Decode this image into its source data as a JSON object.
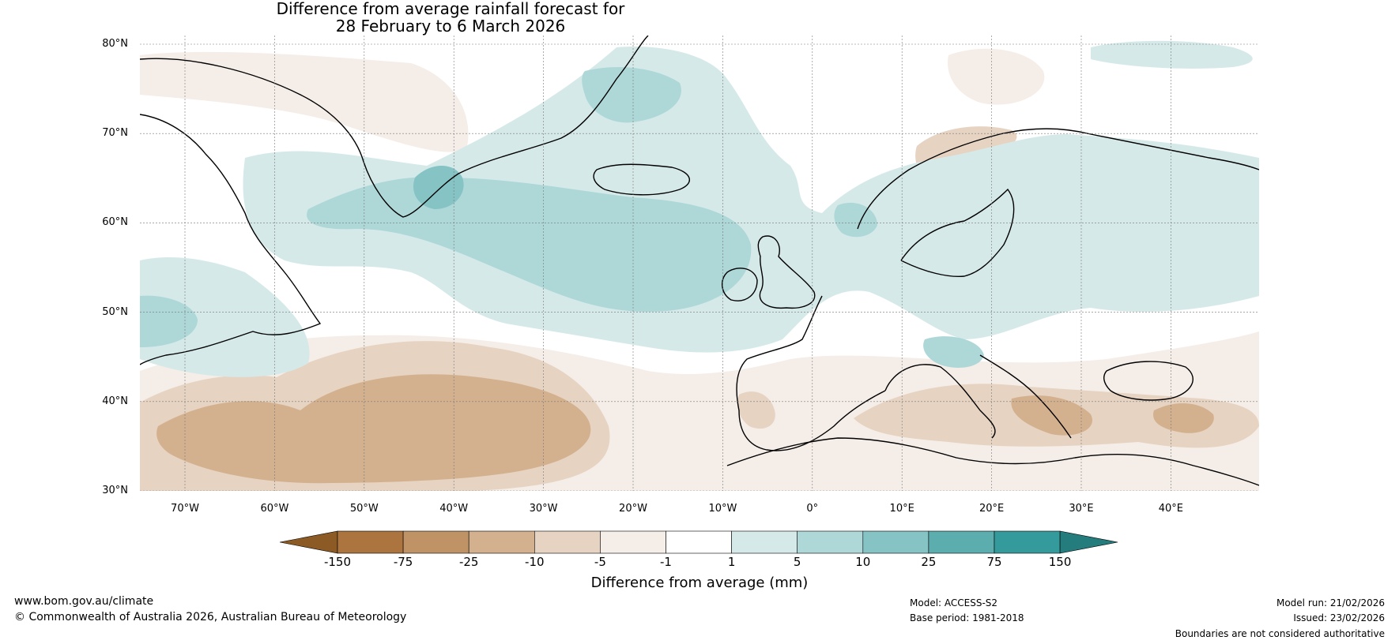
{
  "title": {
    "line1": "Difference from average rainfall forecast for",
    "line2": "28 February to 6 March 2026"
  },
  "map": {
    "region": "North Atlantic and Europe",
    "lat_labels": [
      "80°N",
      "70°N",
      "60°N",
      "50°N",
      "40°N",
      "30°N"
    ],
    "lon_labels": [
      "70°W",
      "60°W",
      "50°W",
      "40°W",
      "30°W",
      "20°W",
      "10°W",
      "0°",
      "10°E",
      "20°E",
      "30°E",
      "40°E"
    ]
  },
  "colorbar": {
    "title": "Difference from average (mm)",
    "ticks": [
      "-150",
      "-75",
      "-25",
      "-10",
      "-5",
      "-1",
      "1",
      "5",
      "10",
      "25",
      "75",
      "150"
    ],
    "colors": [
      "#8b5a25",
      "#ac743e",
      "#bf9366",
      "#d3b08e",
      "#e6d3c2",
      "#f5ede7",
      "#ffffff",
      "#d6e9e9",
      "#aed7d8",
      "#85c3c4",
      "#5cadae",
      "#359a9c",
      "#257c7d"
    ]
  },
  "footer": {
    "url": "www.bom.gov.au/climate",
    "copyright": "© Commonwealth of Australia 2026, Australian Bureau of Meteorology",
    "model": "Model: ACCESS-S2",
    "base_period": "Base period: 1981-2018",
    "model_run": "Model run: 21/02/2026",
    "issued": "Issued: 23/02/2026",
    "disclaimer": "Boundaries are not considered authoritative"
  }
}
